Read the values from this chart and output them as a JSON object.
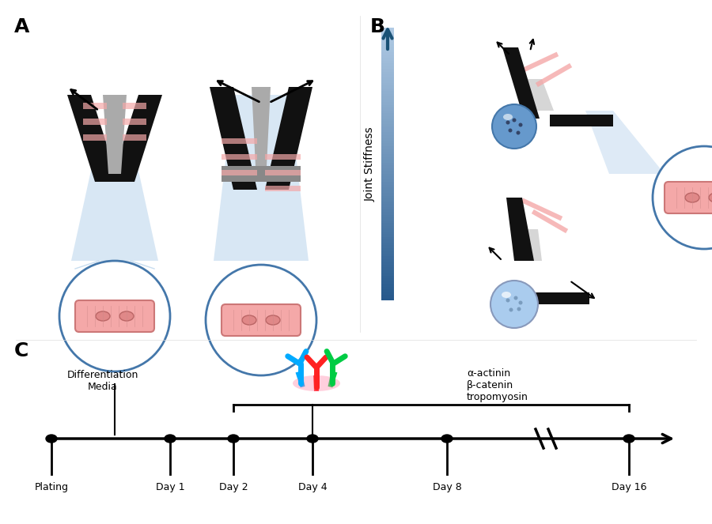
{
  "fig_width": 9.0,
  "fig_height": 6.63,
  "panel_A_label": "A",
  "panel_B_label": "B",
  "panel_C_label": "C",
  "joint_stiffness_label": "Joint Stiffness",
  "diff_media_label": "Differentiation\nMedia",
  "antibody_label": "α-actinin\nβ-catenin\ntropomyosin",
  "timeline_labels": [
    "Plating",
    "Day 1",
    "Day 2",
    "Day 4",
    "Day 8",
    "Day 16"
  ],
  "background_color": "#ffffff"
}
